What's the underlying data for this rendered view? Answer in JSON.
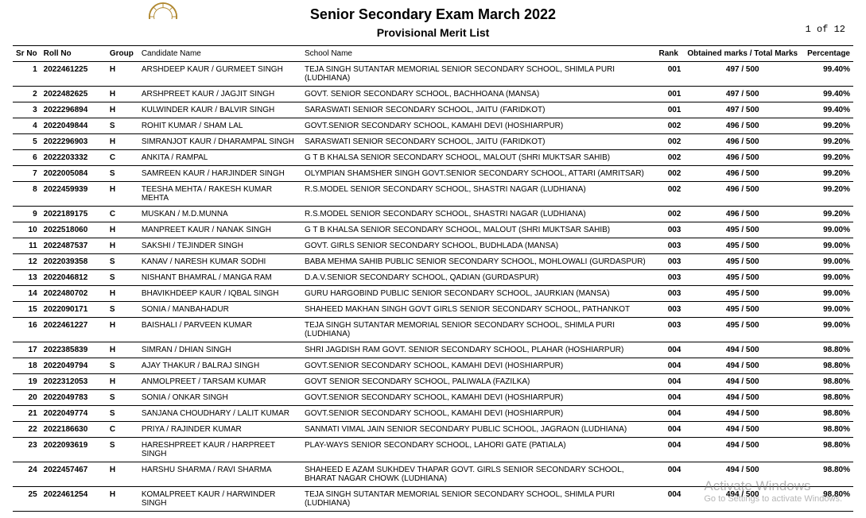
{
  "header": {
    "title": "Senior Secondary Exam March 2022",
    "subtitle": "Provisional Merit List",
    "page_info": "1 of 12"
  },
  "columns": {
    "sr": "Sr No",
    "roll": "Roll No",
    "group": "Group",
    "name": "Candidate Name",
    "school": "School Name",
    "rank": "Rank",
    "marks": "Obtained marks / Total Marks",
    "pct": "Percentage"
  },
  "rows": [
    {
      "sr": "1",
      "roll": "2022461225",
      "group": "H",
      "name": "ARSHDEEP KAUR / GURMEET SINGH",
      "school": "TEJA SINGH SUTANTAR MEMORIAL SENIOR SECONDARY SCHOOL, SHIMLA PURI (LUDHIANA)",
      "rank": "001",
      "marks": "497 / 500",
      "pct": "99.40%"
    },
    {
      "sr": "2",
      "roll": "2022482625",
      "group": "H",
      "name": "ARSHPREET KAUR / JAGJIT SINGH",
      "school": "GOVT. SENIOR SECONDARY SCHOOL, BACHHOANA (MANSA)",
      "rank": "001",
      "marks": "497 / 500",
      "pct": "99.40%"
    },
    {
      "sr": "3",
      "roll": "2022296894",
      "group": "H",
      "name": "KULWINDER KAUR / BALVIR SINGH",
      "school": "SARASWATI SENIOR SECONDARY SCHOOL, JAITU (FARIDKOT)",
      "rank": "001",
      "marks": "497 / 500",
      "pct": "99.40%"
    },
    {
      "sr": "4",
      "roll": "2022049844",
      "group": "S",
      "name": "ROHIT KUMAR / SHAM LAL",
      "school": "GOVT.SENIOR SECONDARY SCHOOL, KAMAHI DEVI (HOSHIARPUR)",
      "rank": "002",
      "marks": "496 / 500",
      "pct": "99.20%"
    },
    {
      "sr": "5",
      "roll": "2022296903",
      "group": "H",
      "name": "SIMRANJOT KAUR / DHARAMPAL SINGH",
      "school": "SARASWATI SENIOR SECONDARY SCHOOL, JAITU (FARIDKOT)",
      "rank": "002",
      "marks": "496 / 500",
      "pct": "99.20%"
    },
    {
      "sr": "6",
      "roll": "2022203332",
      "group": "C",
      "name": "ANKITA / RAMPAL",
      "school": "G T B KHALSA SENIOR SECONDARY SCHOOL, MALOUT (SHRI MUKTSAR SAHIB)",
      "rank": "002",
      "marks": "496 / 500",
      "pct": "99.20%"
    },
    {
      "sr": "7",
      "roll": "2022005084",
      "group": "S",
      "name": "SAMREEN KAUR / HARJINDER SINGH",
      "school": "OLYMPIAN SHAMSHER SINGH GOVT.SENIOR SECONDARY SCHOOL, ATTARI (AMRITSAR)",
      "rank": "002",
      "marks": "496 / 500",
      "pct": "99.20%"
    },
    {
      "sr": "8",
      "roll": "2022459939",
      "group": "H",
      "name": "TEESHA MEHTA / RAKESH KUMAR MEHTA",
      "school": "R.S.MODEL SENIOR SECONDARY SCHOOL, SHASTRI NAGAR (LUDHIANA)",
      "rank": "002",
      "marks": "496 / 500",
      "pct": "99.20%"
    },
    {
      "sr": "9",
      "roll": "2022189175",
      "group": "C",
      "name": "MUSKAN / M.D.MUNNA",
      "school": "R.S.MODEL SENIOR SECONDARY SCHOOL, SHASTRI NAGAR (LUDHIANA)",
      "rank": "002",
      "marks": "496 / 500",
      "pct": "99.20%"
    },
    {
      "sr": "10",
      "roll": "2022518060",
      "group": "H",
      "name": "MANPREET KAUR / NANAK SINGH",
      "school": "G T B KHALSA SENIOR SECONDARY SCHOOL, MALOUT (SHRI MUKTSAR SAHIB)",
      "rank": "003",
      "marks": "495 / 500",
      "pct": "99.00%"
    },
    {
      "sr": "11",
      "roll": "2022487537",
      "group": "H",
      "name": "SAKSHI / TEJINDER SINGH",
      "school": "GOVT. GIRLS SENIOR SECONDARY SCHOOL, BUDHLADA (MANSA)",
      "rank": "003",
      "marks": "495 / 500",
      "pct": "99.00%"
    },
    {
      "sr": "12",
      "roll": "2022039358",
      "group": "S",
      "name": "KANAV / NARESH KUMAR SODHI",
      "school": "BABA MEHMA SAHIB PUBLIC SENIOR SECONDARY SCHOOL, MOHLOWALI (GURDASPUR)",
      "rank": "003",
      "marks": "495 / 500",
      "pct": "99.00%"
    },
    {
      "sr": "13",
      "roll": "2022046812",
      "group": "S",
      "name": "NISHANT BHAMRAL / MANGA RAM",
      "school": "D.A.V.SENIOR SECONDARY SCHOOL, QADIAN (GURDASPUR)",
      "rank": "003",
      "marks": "495 / 500",
      "pct": "99.00%"
    },
    {
      "sr": "14",
      "roll": "2022480702",
      "group": "H",
      "name": "BHAVIKHDEEP KAUR / IQBAL SINGH",
      "school": "GURU HARGOBIND PUBLIC SENIOR SECONDARY SCHOOL, JAURKIAN (MANSA)",
      "rank": "003",
      "marks": "495 / 500",
      "pct": "99.00%"
    },
    {
      "sr": "15",
      "roll": "2022090171",
      "group": "S",
      "name": "SONIA / MANBAHADUR",
      "school": "SHAHEED MAKHAN SINGH GOVT GIRLS SENIOR SECONDARY SCHOOL,  PATHANKOT",
      "rank": "003",
      "marks": "495 / 500",
      "pct": "99.00%"
    },
    {
      "sr": "16",
      "roll": "2022461227",
      "group": "H",
      "name": "BAISHALI / PARVEEN KUMAR",
      "school": "TEJA SINGH SUTANTAR MEMORIAL SENIOR SECONDARY SCHOOL, SHIMLA PURI (LUDHIANA)",
      "rank": "003",
      "marks": "495 / 500",
      "pct": "99.00%"
    },
    {
      "sr": "17",
      "roll": "2022385839",
      "group": "H",
      "name": "SIMRAN / DHIAN SINGH",
      "school": "SHRI JAGDISH RAM GOVT. SENIOR SECONDARY SCHOOL, PLAHAR (HOSHIARPUR)",
      "rank": "004",
      "marks": "494 / 500",
      "pct": "98.80%"
    },
    {
      "sr": "18",
      "roll": "2022049794",
      "group": "S",
      "name": "AJAY THAKUR / BALRAJ SINGH",
      "school": "GOVT.SENIOR SECONDARY SCHOOL, KAMAHI DEVI (HOSHIARPUR)",
      "rank": "004",
      "marks": "494 / 500",
      "pct": "98.80%"
    },
    {
      "sr": "19",
      "roll": "2022312053",
      "group": "H",
      "name": "ANMOLPREET / TARSAM KUMAR",
      "school": "GOVT SENIOR SECONDARY  SCHOOL, PALIWALA (FAZILKA)",
      "rank": "004",
      "marks": "494 / 500",
      "pct": "98.80%"
    },
    {
      "sr": "20",
      "roll": "2022049783",
      "group": "S",
      "name": "SONIA / ONKAR SINGH",
      "school": "GOVT.SENIOR SECONDARY SCHOOL, KAMAHI DEVI (HOSHIARPUR)",
      "rank": "004",
      "marks": "494 / 500",
      "pct": "98.80%"
    },
    {
      "sr": "21",
      "roll": "2022049774",
      "group": "S",
      "name": "SANJANA CHOUDHARY / LALIT KUMAR",
      "school": "GOVT.SENIOR SECONDARY SCHOOL, KAMAHI DEVI (HOSHIARPUR)",
      "rank": "004",
      "marks": "494 / 500",
      "pct": "98.80%"
    },
    {
      "sr": "22",
      "roll": "2022186630",
      "group": "C",
      "name": "PRIYA / RAJINDER KUMAR",
      "school": "SANMATI VIMAL JAIN SENIOR SECONDARY PUBLIC SCHOOL, JAGRAON (LUDHIANA)",
      "rank": "004",
      "marks": "494 / 500",
      "pct": "98.80%"
    },
    {
      "sr": "23",
      "roll": "2022093619",
      "group": "S",
      "name": "HARESHPREET KAUR / HARPREET SINGH",
      "school": "PLAY-WAYS SENIOR SECONDARY SCHOOL, LAHORI GATE (PATIALA)",
      "rank": "004",
      "marks": "494 / 500",
      "pct": "98.80%"
    },
    {
      "sr": "24",
      "roll": "2022457467",
      "group": "H",
      "name": "HARSHU SHARMA / RAVI SHARMA",
      "school": "SHAHEED E AZAM SUKHDEV THAPAR GOVT. GIRLS SENIOR SECONDARY SCHOOL, BHARAT NAGAR CHOWK (LUDHIANA)",
      "rank": "004",
      "marks": "494 / 500",
      "pct": "98.80%"
    },
    {
      "sr": "25",
      "roll": "2022461254",
      "group": "H",
      "name": "KOMALPREET KAUR / HARWINDER SINGH",
      "school": "TEJA SINGH SUTANTAR MEMORIAL SENIOR SECONDARY SCHOOL, SHIMLA PURI (LUDHIANA)",
      "rank": "004",
      "marks": "494 / 500",
      "pct": "98.80%"
    }
  ],
  "watermark": {
    "line1": "Activate Windows",
    "line2": "Go to Settings to activate Windows."
  }
}
